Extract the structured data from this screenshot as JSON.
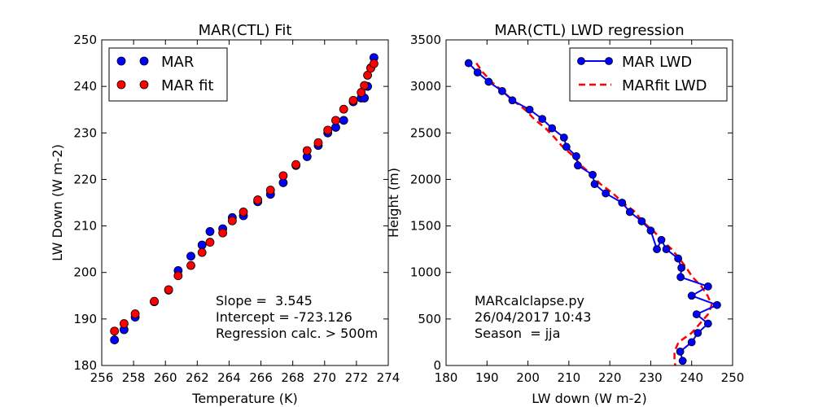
{
  "chart_data": [
    {
      "type": "scatter",
      "title": "MAR(CTL) Fit",
      "xlabel": "Temperature (K)",
      "ylabel": "LW Down (W m-2)",
      "xlim": [
        256,
        274
      ],
      "ylim": [
        180,
        250
      ],
      "xticks": [
        "256",
        "258",
        "260",
        "262",
        "264",
        "266",
        "268",
        "270",
        "272",
        "274"
      ],
      "yticks": [
        "180",
        "190",
        "200",
        "210",
        "220",
        "230",
        "240",
        "250"
      ],
      "legend_position": "top-left",
      "series": [
        {
          "name": "MAR",
          "color": "#0000ff",
          "x": [
            256.8,
            257.4,
            258.1,
            259.3,
            260.2,
            260.8,
            261.6,
            262.3,
            262.8,
            263.6,
            264.2,
            264.9,
            265.8,
            266.6,
            267.4,
            268.2,
            268.9,
            269.6,
            270.2,
            270.7,
            271.2,
            271.8,
            272.3,
            272.5,
            272.7,
            272.9,
            273.1
          ],
          "y": [
            185.5,
            187.7,
            190.4,
            193.7,
            196.2,
            200.4,
            203.5,
            205.9,
            208.8,
            209.4,
            211.8,
            212.2,
            215.2,
            216.8,
            219.3,
            223.0,
            224.9,
            227.3,
            230.0,
            231.2,
            232.7,
            236.7,
            237.5,
            237.5,
            240.0,
            244.0,
            246.2
          ]
        },
        {
          "name": "MAR fit",
          "color": "#ff0000",
          "x": [
            256.8,
            257.4,
            258.1,
            259.3,
            260.2,
            260.8,
            261.6,
            262.3,
            262.8,
            263.6,
            264.2,
            264.9,
            265.8,
            266.6,
            267.4,
            268.2,
            268.9,
            269.6,
            270.2,
            270.7,
            271.2,
            271.8,
            272.3,
            272.5,
            272.7,
            272.9,
            273.1
          ],
          "y": [
            187.4,
            189.0,
            191.1,
            193.8,
            196.3,
            199.3,
            201.5,
            204.3,
            206.5,
            208.5,
            211.1,
            213.0,
            215.6,
            217.7,
            220.8,
            223.2,
            226.2,
            227.9,
            230.6,
            232.7,
            235.1,
            237.0,
            238.7,
            240.2,
            242.4,
            243.9,
            244.9
          ]
        }
      ],
      "annotations": [
        "Slope =  3.545",
        "Intercept = -723.126",
        "Regression calc. > 500m"
      ]
    },
    {
      "type": "line",
      "title": "MAR(CTL) LWD regression",
      "xlabel": "LW down (W m-2)",
      "ylabel": "Height (m)",
      "xlim": [
        180,
        250
      ],
      "ylim": [
        0,
        3500
      ],
      "xticks": [
        "180",
        "190",
        "200",
        "210",
        "220",
        "230",
        "240",
        "250"
      ],
      "yticks": [
        "0",
        "500",
        "1000",
        "1500",
        "2000",
        "2500",
        "3000",
        "3500"
      ],
      "legend_position": "top-right",
      "series": [
        {
          "name": "MAR LWD",
          "color": "#0000ff",
          "style": "solid-with-markers",
          "x": [
            185.5,
            187.7,
            190.4,
            193.7,
            196.2,
            200.4,
            203.5,
            205.9,
            208.8,
            209.4,
            211.8,
            212.2,
            215.8,
            216.3,
            219.0,
            223.0,
            224.9,
            227.8,
            230.0,
            231.5,
            232.6,
            233.8,
            236.7,
            237.5,
            237.3,
            244.0,
            240.0,
            246.2,
            241.2,
            244.0,
            241.5,
            240.0,
            237.2,
            237.8
          ],
          "y": [
            3250,
            3150,
            3050,
            2950,
            2850,
            2750,
            2650,
            2550,
            2450,
            2350,
            2250,
            2150,
            2050,
            1950,
            1850,
            1750,
            1650,
            1550,
            1450,
            1250,
            1350,
            1250,
            1150,
            1050,
            950,
            850,
            750,
            650,
            550,
            450,
            350,
            250,
            150,
            50
          ]
        },
        {
          "name": "MARfit LWD",
          "color": "#ff0000",
          "style": "dashed",
          "x": [
            187.4,
            189.0,
            191.1,
            193.8,
            196.3,
            199.3,
            201.5,
            204.3,
            206.5,
            208.5,
            211.1,
            213.0,
            215.6,
            217.7,
            220.8,
            223.2,
            226.2,
            227.9,
            230.6,
            232.7,
            235.1,
            237.0,
            238.7,
            240.2,
            242.4,
            243.9,
            244.9,
            244.0,
            242.0,
            240.0,
            236.8,
            235.8,
            235.8,
            236.0
          ],
          "y": [
            3250,
            3150,
            3050,
            2950,
            2850,
            2750,
            2650,
            2550,
            2450,
            2350,
            2250,
            2150,
            2050,
            1950,
            1850,
            1750,
            1650,
            1550,
            1450,
            1350,
            1250,
            1150,
            1050,
            950,
            850,
            750,
            650,
            550,
            450,
            350,
            250,
            150,
            50,
            0
          ]
        }
      ],
      "annotations": [
        "MARcalclapse.py",
        "26/04/2017 10:43",
        "Season  = jja"
      ]
    }
  ]
}
